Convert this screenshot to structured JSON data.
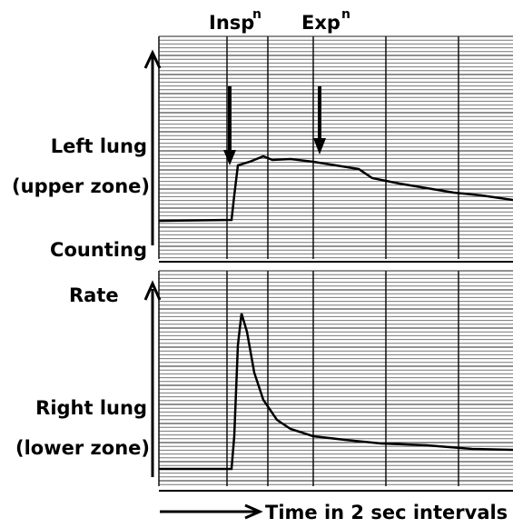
{
  "labels": {
    "insp": "Insp",
    "insp_sup": "n",
    "exp": "Exp",
    "exp_sup": "n",
    "left_lung": "Left lung",
    "upper_zone": "(upper zone)",
    "counting": "Counting",
    "rate": "Rate",
    "right_lung": "Right lung",
    "lower_zone": "(lower zone)",
    "time": "Time in 2 sec intervals"
  }
}
